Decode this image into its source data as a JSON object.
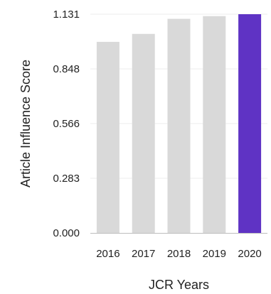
{
  "chart_data": {
    "type": "bar",
    "categories": [
      "2016",
      "2017",
      "2018",
      "2019",
      "2020"
    ],
    "values": [
      0.988,
      1.029,
      1.107,
      1.121,
      1.131
    ],
    "highlight_index": 4,
    "colors": {
      "default": "#d9d9d9",
      "highlight": "#5f33c4"
    },
    "xlabel": "JCR Years",
    "ylabel": "Article Influence Score",
    "ylim": [
      0,
      1.131
    ],
    "yticks": [
      "0.000",
      "0.283",
      "0.566",
      "0.848",
      "1.131"
    ],
    "grid": true
  }
}
